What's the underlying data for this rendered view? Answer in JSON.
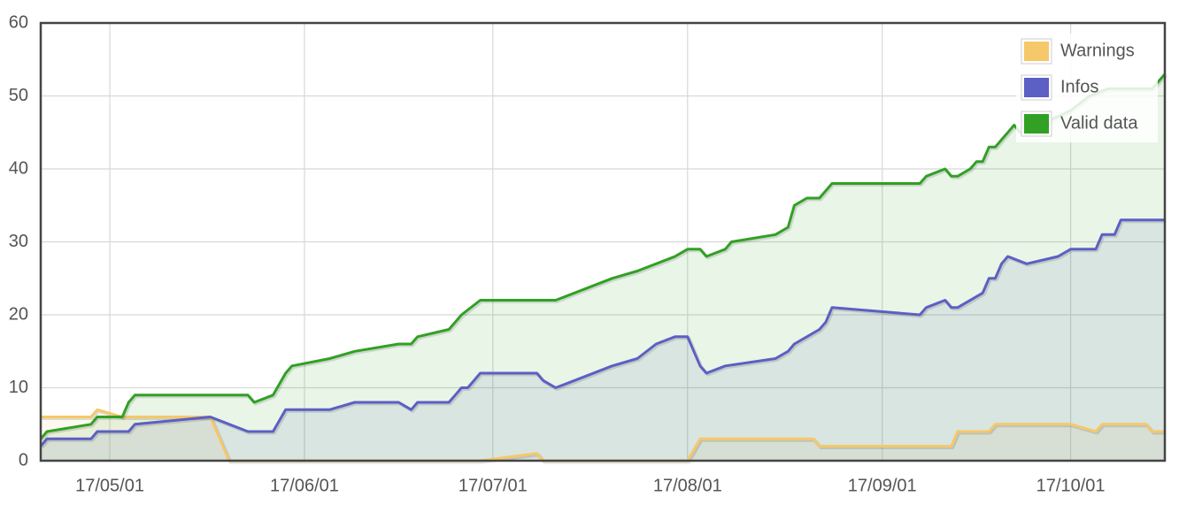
{
  "chart_data": {
    "type": "line",
    "xlim": [
      "17/04/20",
      "17/10/16"
    ],
    "xticks": [
      "17/05/01",
      "17/06/01",
      "17/07/01",
      "17/08/01",
      "17/09/01",
      "17/10/01"
    ],
    "ylim": [
      0,
      60
    ],
    "yticks": [
      0,
      10,
      20,
      30,
      40,
      50,
      60
    ],
    "grid": true,
    "legend": "ne",
    "series": [
      {
        "name": "Warnings",
        "color": "#f5c869",
        "x": [
          "17/04/20",
          "17/04/28",
          "17/04/29",
          "17/05/03",
          "17/05/17",
          "17/05/20",
          "17/06/29",
          "17/07/08",
          "17/07/09",
          "17/08/01",
          "17/08/03",
          "17/08/21",
          "17/08/22",
          "17/09/12",
          "17/09/13",
          "17/09/18",
          "17/09/19",
          "17/10/01",
          "17/10/05",
          "17/10/06",
          "17/10/13",
          "17/10/14",
          "17/10/16"
        ],
        "values": [
          6,
          6,
          7,
          6,
          6,
          0,
          0,
          1,
          0,
          0,
          3,
          3,
          2,
          2,
          4,
          4,
          5,
          5,
          4,
          5,
          5,
          4,
          4
        ]
      },
      {
        "name": "Infos",
        "color": "#5c5fc4",
        "x": [
          "17/04/20",
          "17/04/21",
          "17/04/28",
          "17/04/29",
          "17/05/04",
          "17/05/05",
          "17/05/17",
          "17/05/23",
          "17/05/27",
          "17/05/29",
          "17/06/05",
          "17/06/09",
          "17/06/16",
          "17/06/18",
          "17/06/19",
          "17/06/24",
          "17/06/25",
          "17/06/26",
          "17/06/27",
          "17/06/29",
          "17/07/08",
          "17/07/09",
          "17/07/11",
          "17/07/20",
          "17/07/24",
          "17/07/27",
          "17/07/30",
          "17/08/01",
          "17/08/03",
          "17/08/04",
          "17/08/07",
          "17/08/15",
          "17/08/17",
          "17/08/18",
          "17/08/20",
          "17/08/22",
          "17/08/23",
          "17/08/24",
          "17/09/07",
          "17/09/08",
          "17/09/11",
          "17/09/12",
          "17/09/13",
          "17/09/17",
          "17/09/18",
          "17/09/19",
          "17/09/20",
          "17/09/21",
          "17/09/24",
          "17/09/29",
          "17/10/01",
          "17/10/05",
          "17/10/06",
          "17/10/08",
          "17/10/09",
          "17/10/15",
          "17/10/16"
        ],
        "values": [
          2,
          3,
          3,
          4,
          4,
          5,
          6,
          4,
          4,
          7,
          7,
          8,
          8,
          7,
          8,
          8,
          9,
          10,
          10,
          12,
          12,
          11,
          10,
          13,
          14,
          16,
          17,
          17,
          13,
          12,
          13,
          14,
          15,
          16,
          17,
          18,
          19,
          21,
          20,
          21,
          22,
          21,
          21,
          23,
          25,
          25,
          27,
          28,
          27,
          28,
          29,
          29,
          31,
          31,
          33,
          33,
          33
        ]
      },
      {
        "name": "Valid data",
        "color": "#31a024",
        "x": [
          "17/04/20",
          "17/04/21",
          "17/04/28",
          "17/04/29",
          "17/05/03",
          "17/05/04",
          "17/05/05",
          "17/05/23",
          "17/05/24",
          "17/05/27",
          "17/05/29",
          "17/05/30",
          "17/06/05",
          "17/06/09",
          "17/06/16",
          "17/06/18",
          "17/06/19",
          "17/06/24",
          "17/06/25",
          "17/06/26",
          "17/06/29",
          "17/07/11",
          "17/07/20",
          "17/07/24",
          "17/07/30",
          "17/08/01",
          "17/08/03",
          "17/08/04",
          "17/08/07",
          "17/08/08",
          "17/08/15",
          "17/08/17",
          "17/08/18",
          "17/08/20",
          "17/08/22",
          "17/08/24",
          "17/09/07",
          "17/09/08",
          "17/09/11",
          "17/09/12",
          "17/09/13",
          "17/09/15",
          "17/09/16",
          "17/09/17",
          "17/09/18",
          "17/09/19",
          "17/09/20",
          "17/09/21",
          "17/09/22",
          "17/09/23",
          "17/09/26",
          "17/10/01",
          "17/10/04",
          "17/10/07",
          "17/10/14",
          "17/10/15",
          "17/10/16"
        ],
        "values": [
          3,
          4,
          5,
          6,
          6,
          8,
          9,
          9,
          8,
          9,
          12,
          13,
          14,
          15,
          16,
          16,
          17,
          18,
          19,
          20,
          22,
          22,
          25,
          26,
          28,
          29,
          29,
          28,
          29,
          30,
          31,
          32,
          35,
          36,
          36,
          38,
          38,
          39,
          40,
          39,
          39,
          40,
          41,
          41,
          43,
          43,
          44,
          45,
          46,
          45,
          46,
          48,
          50,
          51,
          51,
          52,
          53
        ]
      }
    ]
  }
}
